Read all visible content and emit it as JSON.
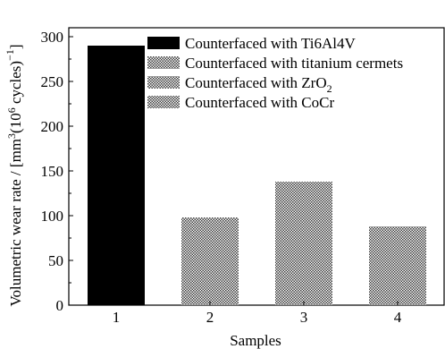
{
  "chart_data": {
    "type": "bar",
    "xlabel": "Samples",
    "ylabel": {
      "prefix": "Volumetric wear rate / [mm",
      "sup1": "3",
      "mid": "(10",
      "sup2": "6",
      "suffix": " cycles)",
      "sup3": "−1",
      "end": "]"
    },
    "categories": [
      "1",
      "2",
      "3",
      "4"
    ],
    "values": [
      290,
      98,
      138,
      88
    ],
    "ylim": [
      0,
      310
    ],
    "yticks": [
      0,
      50,
      100,
      150,
      200,
      250,
      300
    ],
    "series_colors": [
      "#000000",
      "hatch",
      "hatch",
      "hatch"
    ],
    "legend": {
      "placement": "top-right",
      "entries": [
        {
          "label": "Counterfaced with Ti6Al4V",
          "fill": "#000000"
        },
        {
          "label": "Counterfaced with titanium cermets",
          "fill": "hatch"
        },
        {
          "label": "Counterfaced with ZrO",
          "sub": "2",
          "fill": "hatch"
        },
        {
          "label": "Counterfaced with CoCr",
          "fill": "hatch"
        }
      ]
    },
    "grid": false
  }
}
